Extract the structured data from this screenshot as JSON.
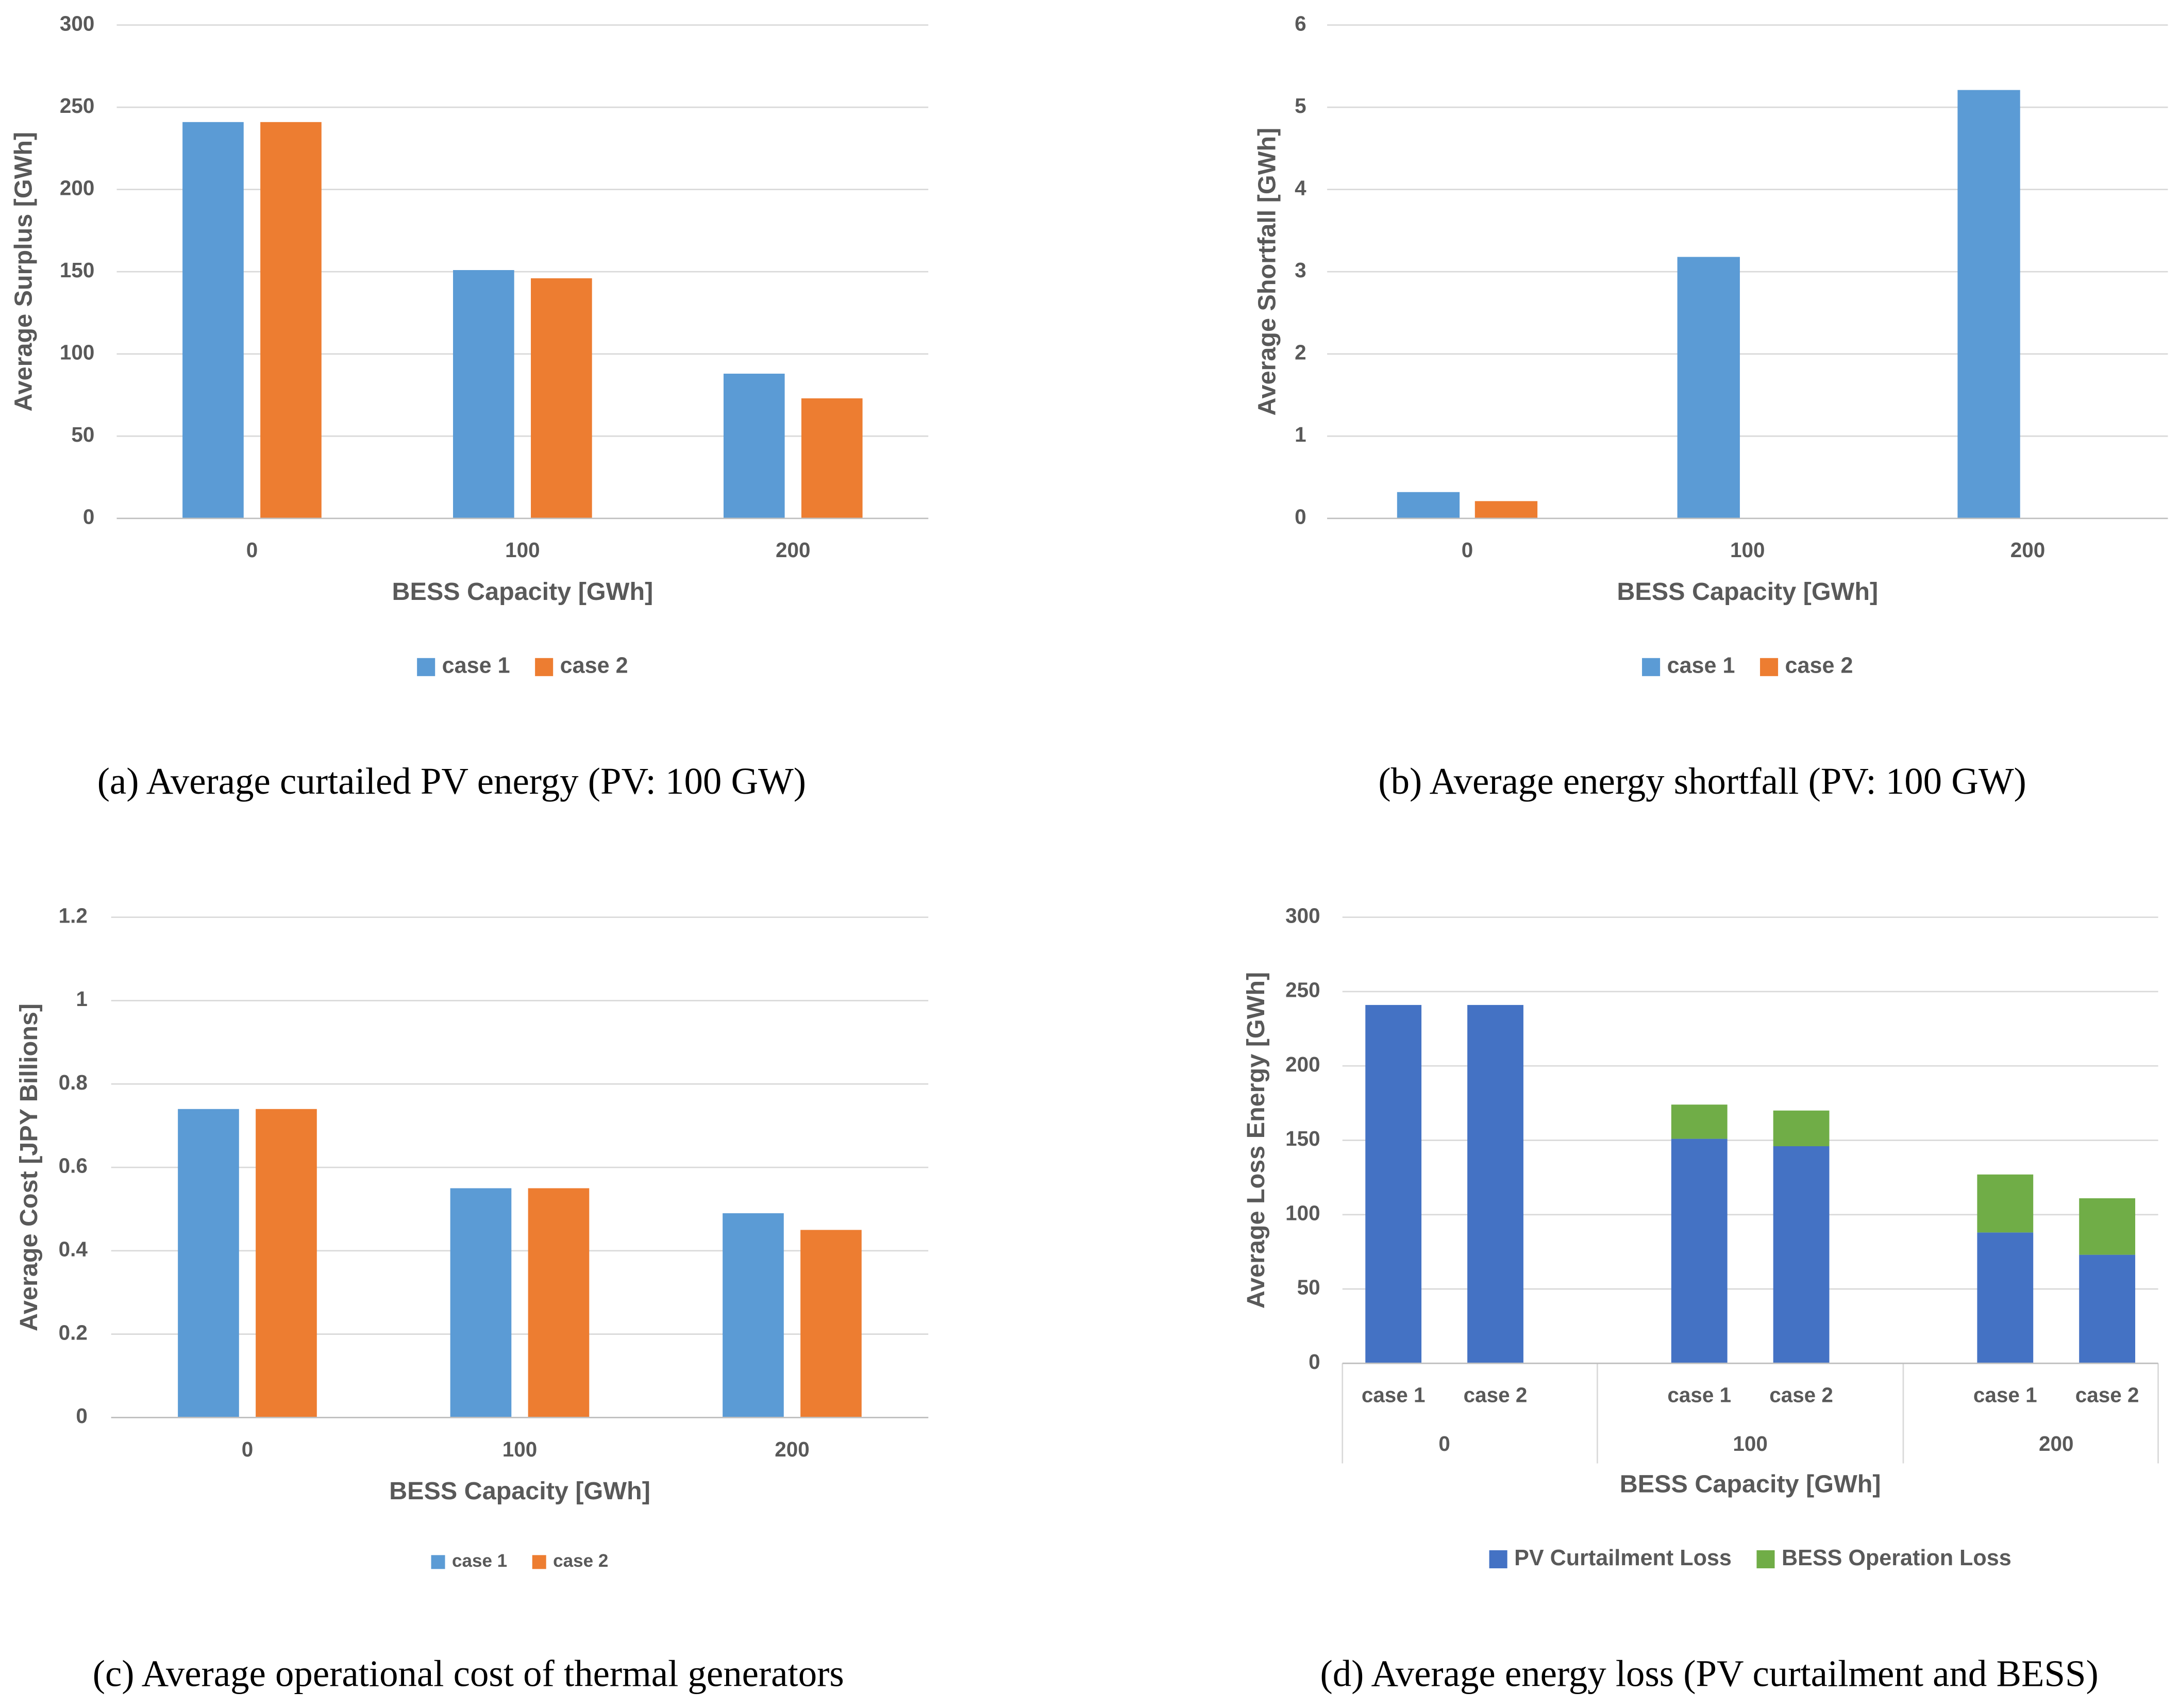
{
  "chart_data": [
    {
      "type": "bar",
      "caption": "(a) Average curtailed PV energy (PV: 100 GW)",
      "xlabel": "BESS Capacity [GWh]",
      "ylabel": "Average Surplus [GWh]",
      "categories": [
        "0",
        "100",
        "200"
      ],
      "series": [
        {
          "name": "case 1",
          "color": "#5b9bd5",
          "values": [
            241,
            151,
            88
          ]
        },
        {
          "name": "case 2",
          "color": "#ed7d31",
          "values": [
            241,
            146,
            73
          ]
        }
      ],
      "ylim": [
        0,
        300
      ],
      "yticks": [
        0,
        50,
        100,
        150,
        200,
        250,
        300
      ],
      "grid": true,
      "legend": "bottom"
    },
    {
      "type": "bar",
      "caption": "(b) Average energy shortfall (PV: 100 GW)",
      "xlabel": "BESS Capacity [GWh]",
      "ylabel": "Average Shortfall  [GWh]",
      "categories": [
        "0",
        "100",
        "200"
      ],
      "series": [
        {
          "name": "case 1",
          "color": "#5b9bd5",
          "values": [
            0.32,
            3.18,
            5.21
          ]
        },
        {
          "name": "case 2",
          "color": "#ed7d31",
          "values": [
            0.21,
            0,
            0
          ]
        }
      ],
      "ylim": [
        0,
        6
      ],
      "yticks": [
        0,
        1,
        2,
        3,
        4,
        5,
        6
      ],
      "grid": true,
      "legend": "bottom"
    },
    {
      "type": "bar",
      "caption": "(c) Average operational cost of thermal generators",
      "xlabel": "BESS Capacity [GWh]",
      "ylabel": "Average Cost [JPY Billions]",
      "categories": [
        "0",
        "100",
        "200"
      ],
      "series": [
        {
          "name": "case 1",
          "color": "#5b9bd5",
          "values": [
            0.74,
            0.55,
            0.49
          ]
        },
        {
          "name": "case 2",
          "color": "#ed7d31",
          "values": [
            0.74,
            0.55,
            0.45
          ]
        }
      ],
      "ylim": [
        0,
        1.2
      ],
      "yticks": [
        0,
        0.2,
        0.4,
        0.6,
        0.8,
        1,
        1.2
      ],
      "grid": true,
      "legend": "bottom"
    },
    {
      "type": "stacked_bar",
      "caption": "(d) Average energy loss (PV curtailment and BESS)",
      "xlabel": "BESS Capacity [GWh]",
      "ylabel": "Average Loss Energy [GWh]",
      "groups": [
        {
          "label": "0",
          "categories": [
            "case 1",
            "case 2"
          ]
        },
        {
          "label": "100",
          "categories": [
            "case 1",
            "case 2"
          ]
        },
        {
          "label": "200",
          "categories": [
            "case 1",
            "case 2"
          ]
        }
      ],
      "series": [
        {
          "name": "PV Curtailment Loss",
          "color": "#4472c4",
          "values": [
            241,
            241,
            151,
            146,
            88,
            73
          ]
        },
        {
          "name": "BESS Operation Loss",
          "color": "#70ad47",
          "values": [
            0,
            0,
            23,
            24,
            39,
            38
          ]
        }
      ],
      "ylim": [
        0,
        300
      ],
      "yticks": [
        0,
        50,
        100,
        150,
        200,
        250,
        300
      ],
      "grid": true,
      "legend": "bottom"
    }
  ]
}
